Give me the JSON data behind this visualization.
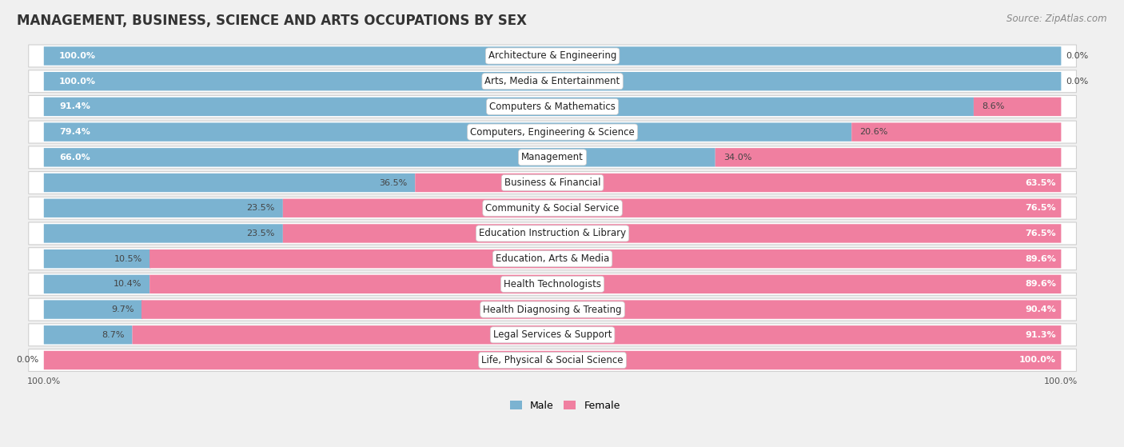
{
  "title": "MANAGEMENT, BUSINESS, SCIENCE AND ARTS OCCUPATIONS BY SEX",
  "source": "Source: ZipAtlas.com",
  "categories": [
    "Architecture & Engineering",
    "Arts, Media & Entertainment",
    "Computers & Mathematics",
    "Computers, Engineering & Science",
    "Management",
    "Business & Financial",
    "Community & Social Service",
    "Education Instruction & Library",
    "Education, Arts & Media",
    "Health Technologists",
    "Health Diagnosing & Treating",
    "Legal Services & Support",
    "Life, Physical & Social Science"
  ],
  "male_pct": [
    100.0,
    100.0,
    91.4,
    79.4,
    66.0,
    36.5,
    23.5,
    23.5,
    10.5,
    10.4,
    9.7,
    8.7,
    0.0
  ],
  "female_pct": [
    0.0,
    0.0,
    8.6,
    20.6,
    34.0,
    63.5,
    76.5,
    76.5,
    89.6,
    89.6,
    90.4,
    91.3,
    100.0
  ],
  "male_color": "#7bb3d1",
  "female_color": "#f07fa0",
  "bg_color": "#f0f0f0",
  "row_bg_color": "#e8e8e8",
  "title_fontsize": 12,
  "label_fontsize": 8.5,
  "pct_fontsize": 8.0,
  "legend_fontsize": 9,
  "source_fontsize": 8.5
}
